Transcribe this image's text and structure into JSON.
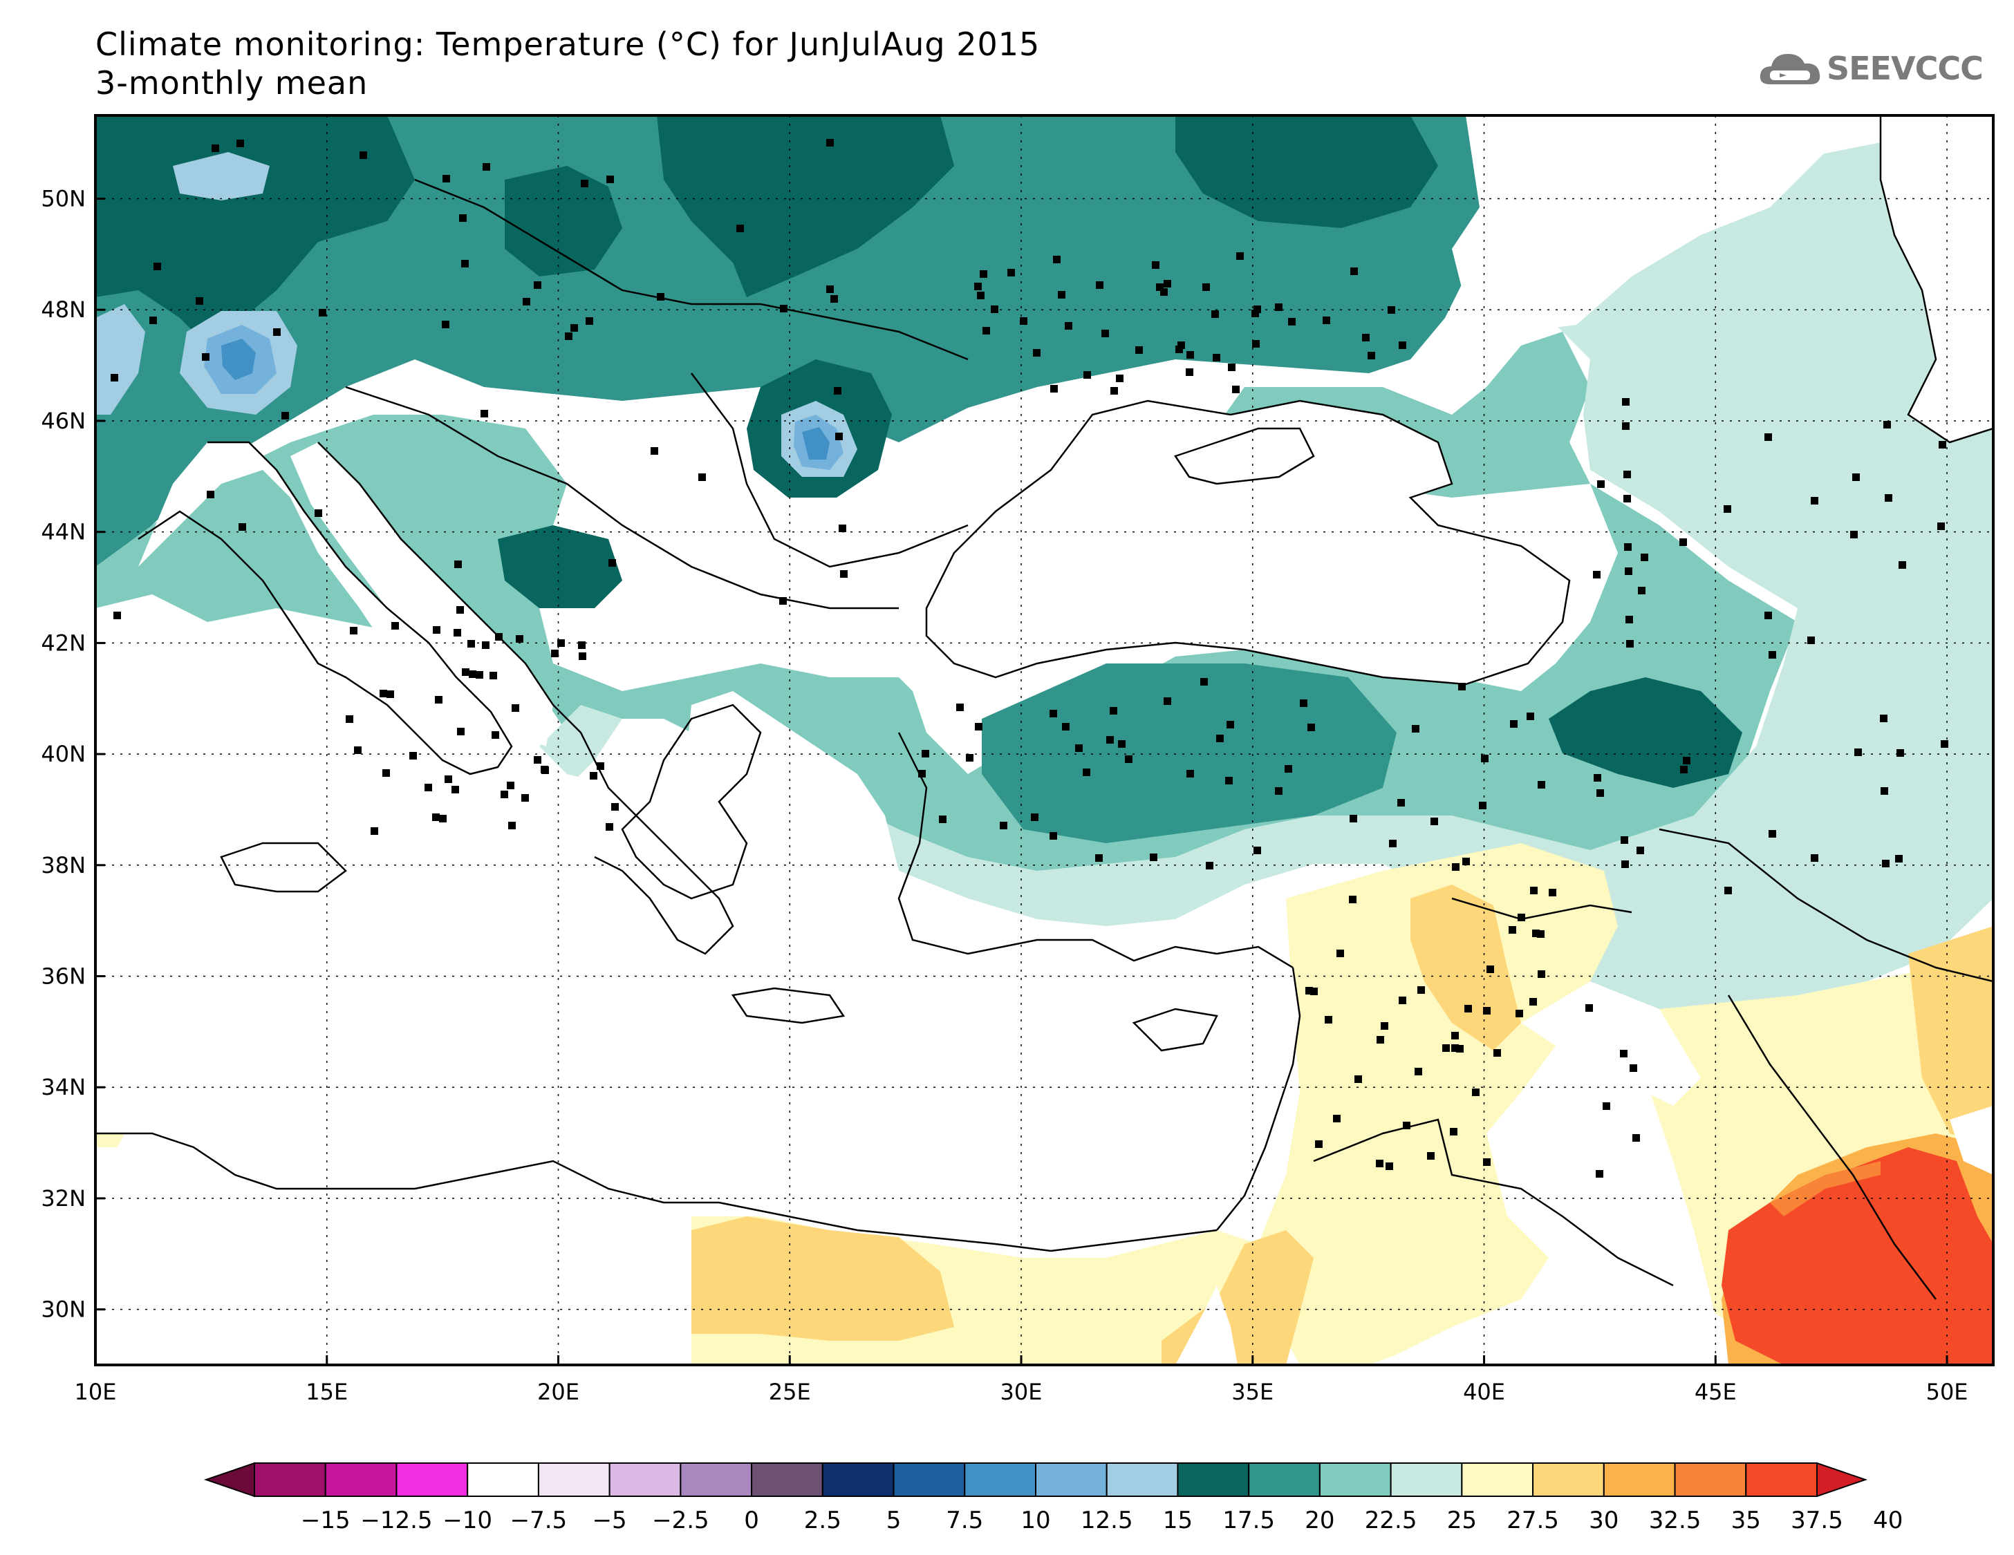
{
  "header": {
    "title_line1": "Climate monitoring: Temperature (°C) for JunJulAug 2015",
    "title_line2": "3-monthly mean"
  },
  "logo": {
    "text": "SEEVCCC",
    "icon": "cloud-icon"
  },
  "map": {
    "lon_labels": [
      "10E",
      "15E",
      "20E",
      "25E",
      "30E",
      "35E",
      "40E",
      "45E",
      "50E"
    ],
    "lat_labels": [
      "50N",
      "48N",
      "46N",
      "44N",
      "42N",
      "40N",
      "38N",
      "36N",
      "34N",
      "32N",
      "30N"
    ]
  },
  "colorbar": {
    "labels": [
      "-15",
      "-12.5",
      "-10",
      "-7.5",
      "-5",
      "-2.5",
      "0",
      "2.5",
      "5",
      "7.5",
      "10",
      "12.5",
      "15",
      "17.5",
      "20",
      "22.5",
      "25",
      "27.5",
      "30",
      "32.5",
      "35",
      "37.5",
      "40"
    ],
    "colors": [
      "#6b0a3a",
      "#a0106a",
      "#c8169c",
      "#f32ee0",
      "#ffffff",
      "#f2e6f5",
      "#dcb9e4",
      "#a888bf",
      "#6e5275",
      "#0d2f6b",
      "#205f9e",
      "#4191c6",
      "#75b2db",
      "#a2cde3",
      "#09665e",
      "#31958c",
      "#80cbbe",
      "#c7e9e1",
      "#fef8c1",
      "#fdd77a",
      "#fbb24a",
      "#f98438",
      "#f44a28",
      "#d21e24"
    ]
  },
  "colors": {
    "land_fill": "#ffffff",
    "frame": "#000000",
    "coast": "#000000"
  }
}
